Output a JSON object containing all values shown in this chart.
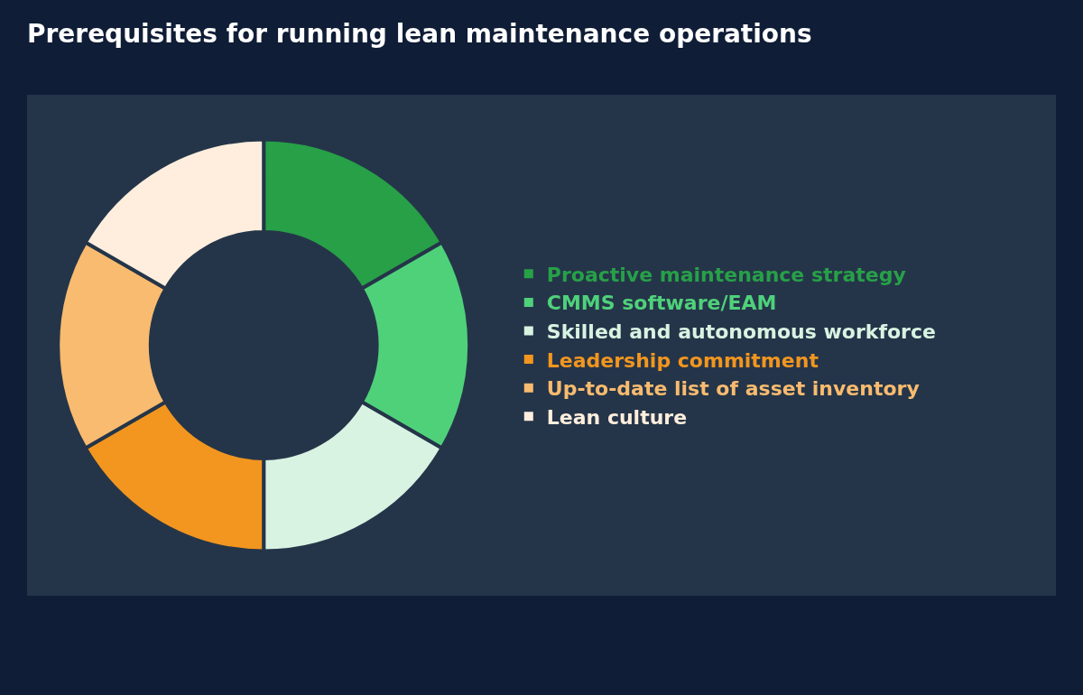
{
  "chart_data": {
    "type": "donut",
    "title": "Prerequisites for running lean maintenance operations",
    "categories": [
      "Proactive maintenance strategy",
      "CMMS software/EAM",
      "Skilled and autonomous workforce",
      "Leadership commitment",
      "Up-to-date list of asset inventory",
      "Lean culture"
    ],
    "values": [
      16.67,
      16.67,
      16.66,
      16.67,
      16.67,
      16.66
    ],
    "colors": [
      "#27a048",
      "#4fd17a",
      "#d8f3e2",
      "#f2961f",
      "#f8bb6f",
      "#ffeedd"
    ],
    "legend": "right"
  }
}
